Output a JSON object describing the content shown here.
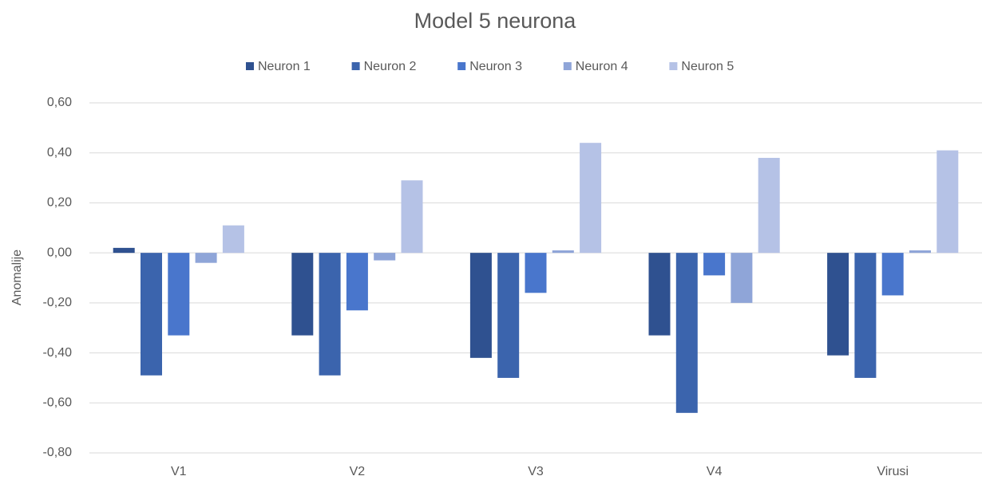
{
  "chart_data": {
    "type": "bar",
    "title": "Model 5 neurona",
    "y_label": "Anomalije",
    "categories": [
      "V1",
      "V2",
      "V3",
      "V4",
      "Virusi"
    ],
    "series": [
      {
        "name": "Neuron 1",
        "color": "#2f5190",
        "values": [
          0.02,
          -0.33,
          -0.42,
          -0.33,
          -0.41
        ]
      },
      {
        "name": "Neuron 2",
        "color": "#3b64ad",
        "values": [
          -0.49,
          -0.49,
          -0.5,
          -0.64,
          -0.5
        ]
      },
      {
        "name": "Neuron 3",
        "color": "#4976cc",
        "values": [
          -0.33,
          -0.23,
          -0.16,
          -0.09,
          -0.17
        ]
      },
      {
        "name": "Neuron 4",
        "color": "#8fa5d8",
        "values": [
          -0.04,
          -0.03,
          0.01,
          -0.2,
          0.01
        ]
      },
      {
        "name": "Neuron 5",
        "color": "#b5c2e6",
        "values": [
          0.11,
          0.29,
          0.44,
          0.38,
          0.41
        ]
      }
    ],
    "ylim": [
      -0.8,
      0.6
    ],
    "yticks": [
      {
        "value": 0.6,
        "label": "0,60"
      },
      {
        "value": 0.4,
        "label": "0,40"
      },
      {
        "value": 0.2,
        "label": "0,20"
      },
      {
        "value": 0,
        "label": "0,00"
      },
      {
        "value": -0.2,
        "label": "-0,20"
      },
      {
        "value": -0.4,
        "label": "-0,40"
      },
      {
        "value": -0.6,
        "label": "-0,60"
      },
      {
        "value": -0.8,
        "label": "-0,80"
      }
    ],
    "grid": true,
    "legend": "top"
  }
}
